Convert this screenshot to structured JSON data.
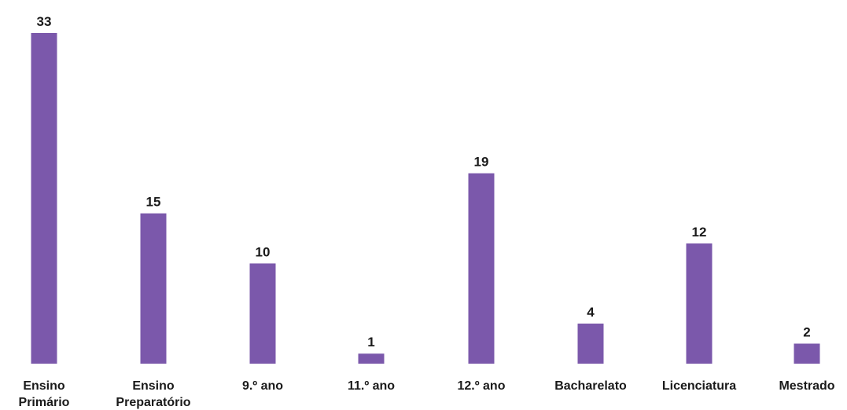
{
  "chart_data": {
    "type": "bar",
    "categories": [
      [
        "Ensino",
        "Primário"
      ],
      [
        "Ensino",
        "Preparatório"
      ],
      [
        "9.º ano"
      ],
      [
        "11.º ano"
      ],
      [
        "12.º ano"
      ],
      [
        "Bacharelato"
      ],
      [
        "Licenciatura"
      ],
      [
        "Mestrado"
      ]
    ],
    "values": [
      33,
      15,
      10,
      1,
      19,
      4,
      12,
      2
    ],
    "value_labels": [
      "33",
      "15",
      "10",
      "1",
      "19",
      "4",
      "12",
      "2"
    ],
    "ylim": [
      0,
      33
    ],
    "grid": false,
    "legend": "none",
    "colors": {
      "bar": "#7b58ab",
      "text": "#1a1a1a"
    }
  }
}
